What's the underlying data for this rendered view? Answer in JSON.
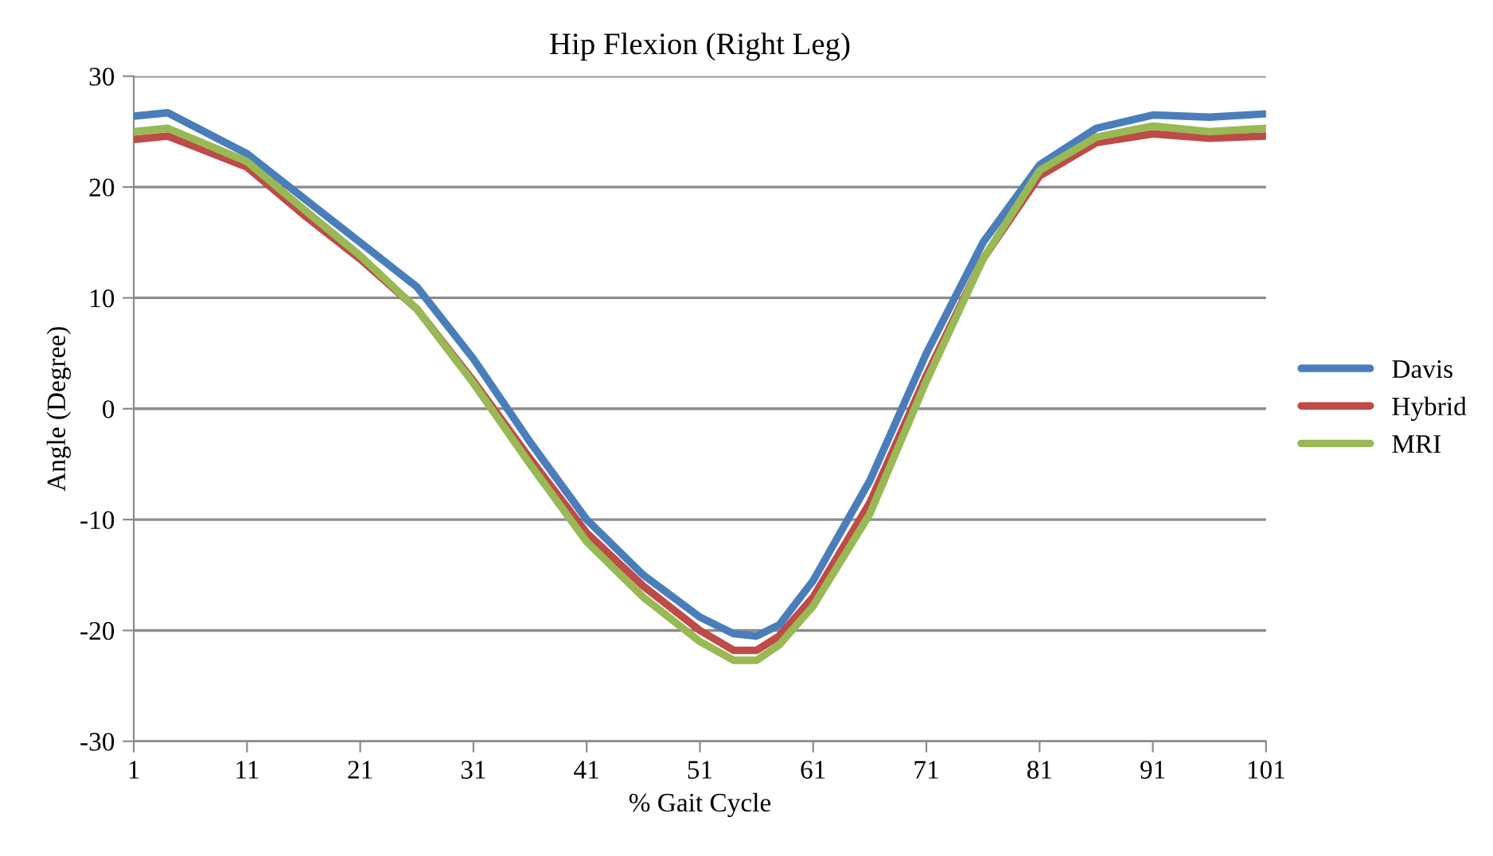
{
  "chart_data": {
    "type": "line",
    "title": "Hip Flexion (Right Leg)",
    "xlabel": "% Gait Cycle",
    "ylabel": "Angle (Degree)",
    "x": [
      1,
      4,
      11,
      16,
      21,
      26,
      31,
      36,
      41,
      46,
      51,
      54,
      56,
      58,
      61,
      66,
      71,
      76,
      81,
      86,
      91,
      96,
      101
    ],
    "series": [
      {
        "name": "Davis",
        "color": "#4a7ebb",
        "values": [
          26.4,
          26.7,
          23.0,
          19.0,
          15.0,
          11.0,
          4.5,
          -3.0,
          -10.0,
          -15.0,
          -18.8,
          -20.3,
          -20.5,
          -19.5,
          -15.5,
          -6.5,
          5.0,
          15.0,
          22.0,
          25.3,
          26.5,
          26.3,
          26.6
        ]
      },
      {
        "name": "Hybrid",
        "color": "#be4b48",
        "values": [
          24.3,
          24.6,
          21.8,
          17.5,
          13.5,
          9.0,
          2.5,
          -4.5,
          -11.2,
          -16.0,
          -20.0,
          -21.8,
          -21.8,
          -20.5,
          -17.0,
          -8.5,
          3.0,
          13.5,
          21.0,
          24.0,
          24.8,
          24.4,
          24.6
        ]
      },
      {
        "name": "MRI",
        "color": "#98b954",
        "values": [
          25.0,
          25.3,
          22.3,
          18.0,
          13.8,
          9.0,
          2.3,
          -5.0,
          -12.0,
          -17.0,
          -21.0,
          -22.7,
          -22.7,
          -21.3,
          -17.8,
          -9.5,
          2.5,
          13.5,
          21.5,
          24.5,
          25.5,
          25.0,
          25.3
        ]
      }
    ],
    "xlim": [
      1,
      101
    ],
    "xticks": [
      1,
      11,
      21,
      31,
      41,
      51,
      61,
      71,
      81,
      91,
      101
    ],
    "ylim": [
      -30,
      30
    ],
    "yticks": [
      -30,
      -20,
      -10,
      0,
      10,
      20,
      30
    ],
    "grid": "y",
    "legend": "right",
    "marker": "none",
    "line_style": "solid"
  }
}
